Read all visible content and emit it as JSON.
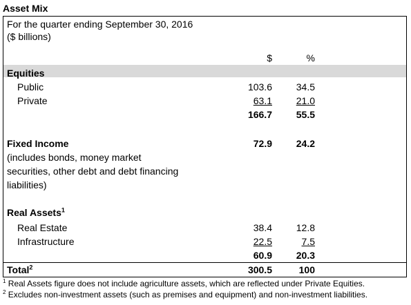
{
  "title": "Asset Mix",
  "subtitle_1": "For the quarter ending September 30, 2016",
  "subtitle_2": "($ billions)",
  "columns": {
    "dollar": "$",
    "percent": "%"
  },
  "equities": {
    "label": "Equities",
    "rows": [
      {
        "label": "Public",
        "dollar": "103.6",
        "percent": "34.5"
      },
      {
        "label": "Private",
        "dollar": "63.1",
        "percent": "21.0"
      }
    ],
    "total": {
      "dollar": "166.7",
      "percent": "55.5"
    }
  },
  "fixed_income": {
    "label": "Fixed Income",
    "dollar": "72.9",
    "percent": "24.2",
    "note_lines": [
      "(includes bonds, money market",
      "securities, other debt and debt financing",
      "liabilities)"
    ]
  },
  "real_assets": {
    "label": "Real Assets",
    "sup": "1",
    "rows": [
      {
        "label": "Real Estate",
        "dollar": "38.4",
        "percent": "12.8"
      },
      {
        "label": "Infrastructure",
        "dollar": "22.5",
        "percent": "7.5"
      }
    ],
    "total": {
      "dollar": "60.9",
      "percent": "20.3"
    }
  },
  "total": {
    "label": "Total",
    "sup": "2",
    "dollar": "300.5",
    "percent": "100"
  },
  "footnotes": [
    {
      "mark": "1",
      "text": "Real Assets figure does not include agriculture assets, which are reflected under Private Equities."
    },
    {
      "mark": "2",
      "text": "Excludes non-investment assets (such as premises and equipment) and non-investment liabilities."
    }
  ]
}
